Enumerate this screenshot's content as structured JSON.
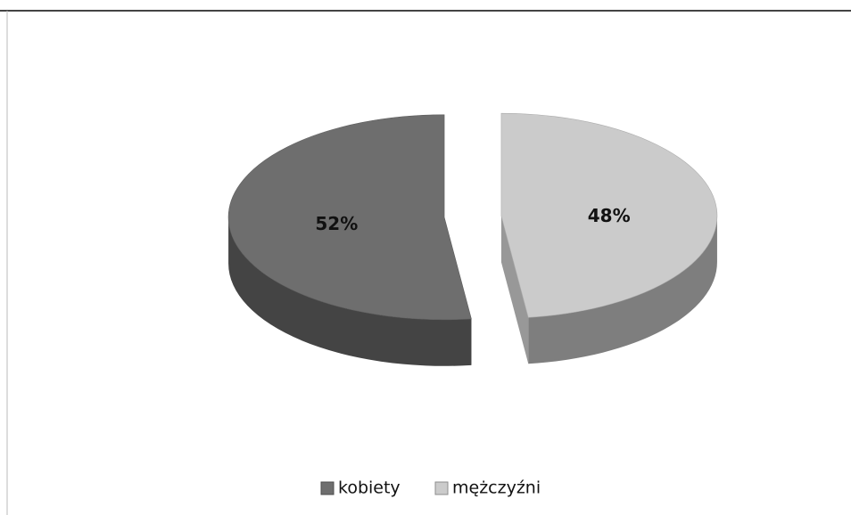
{
  "chart_data": {
    "type": "pie",
    "categories": [
      "kobiety",
      "mężczyźni"
    ],
    "values": [
      52,
      48
    ],
    "value_labels": [
      "52%",
      "48%"
    ],
    "colors": [
      "#6e6e6e",
      "#cbcbcb"
    ],
    "legend": "bottom"
  }
}
